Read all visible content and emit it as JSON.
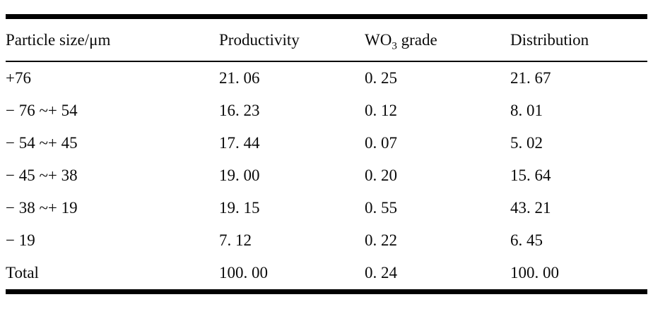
{
  "table": {
    "headers": [
      {
        "label": "Particle size/μm"
      },
      {
        "label": "Productivity"
      },
      {
        "label": "WO3 grade",
        "parts": {
          "base": "WO",
          "sub": "3",
          "rest": " grade"
        }
      },
      {
        "label": "Distribution"
      }
    ],
    "rows": [
      {
        "particle_size": "+76",
        "productivity": "21. 06",
        "wo3_grade": "0. 25",
        "distribution": "21. 67"
      },
      {
        "particle_size": "− 76 ~+ 54",
        "productivity": "16. 23",
        "wo3_grade": "0. 12",
        "distribution": "8. 01"
      },
      {
        "particle_size": "− 54 ~+ 45",
        "productivity": "17. 44",
        "wo3_grade": "0. 07",
        "distribution": "5. 02"
      },
      {
        "particle_size": "− 45 ~+ 38",
        "productivity": "19. 00",
        "wo3_grade": "0. 20",
        "distribution": "15. 64"
      },
      {
        "particle_size": "− 38 ~+ 19",
        "productivity": "19. 15",
        "wo3_grade": "0. 55",
        "distribution": "43. 21"
      },
      {
        "particle_size": "− 19",
        "productivity": "7. 12",
        "wo3_grade": "0. 22",
        "distribution": "6. 45"
      },
      {
        "particle_size": "Total",
        "productivity": "100. 00",
        "wo3_grade": "0. 24",
        "distribution": "100. 00"
      }
    ],
    "colors": {
      "text": "#0a0a0a",
      "background": "#ffffff",
      "rule": "#000000"
    }
  }
}
